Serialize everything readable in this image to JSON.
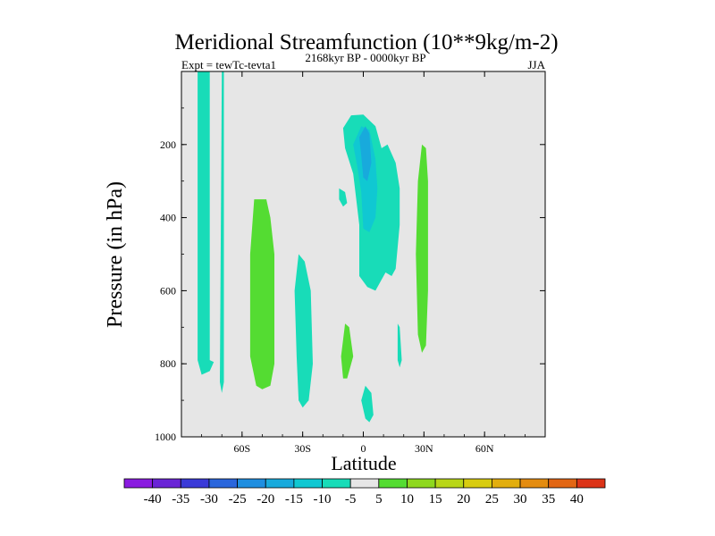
{
  "chart_data": {
    "type": "filled-contour",
    "title": "Meridional Streamfunction (10**9kg/m-2)",
    "subtitle_left": "Expt = tewTc-tevta1",
    "subtitle_center": "2168kyr BP - 0000kyr BP",
    "subtitle_right": "JJA",
    "xlabel": "Latitude",
    "ylabel": "Pressure (in hPa)",
    "xlim": [
      -90,
      90
    ],
    "ylim": [
      0,
      1000
    ],
    "y_inverted": true,
    "x_ticks": [
      {
        "value": -60,
        "label": "60S"
      },
      {
        "value": -30,
        "label": "30S"
      },
      {
        "value": 0,
        "label": "0"
      },
      {
        "value": 30,
        "label": "30N"
      },
      {
        "value": 60,
        "label": "60N"
      }
    ],
    "y_ticks": [
      {
        "value": 200,
        "label": "200"
      },
      {
        "value": 400,
        "label": "400"
      },
      {
        "value": 600,
        "label": "600"
      },
      {
        "value": 800,
        "label": "800"
      },
      {
        "value": 1000,
        "label": "1000"
      }
    ],
    "background_color": "#e6e6e6",
    "colorbar": {
      "levels": [
        -40,
        -35,
        -30,
        -25,
        -20,
        -15,
        -10,
        -5,
        5,
        10,
        15,
        20,
        25,
        30,
        35,
        40
      ],
      "labels": [
        "-40",
        "-35",
        "-30",
        "-25",
        "-20",
        "-15",
        "-10",
        "-5",
        "5",
        "10",
        "15",
        "20",
        "25",
        "30",
        "35",
        "40"
      ],
      "colors": [
        "#8a1be0",
        "#6a24d6",
        "#3a3ad8",
        "#2a66dc",
        "#1e8ee0",
        "#18aadc",
        "#10c8d2",
        "#18dcb8",
        "#e6e6e6",
        "#54dc32",
        "#8ed81e",
        "#b8d618",
        "#d8cc10",
        "#e2ae0e",
        "#e48c10",
        "#e26614",
        "#dc3418"
      ]
    },
    "regions": [
      {
        "level": "-10 to -5",
        "color": "#18dcb8",
        "points": [
          [
            -82,
            0
          ],
          [
            -76,
            0
          ],
          [
            -76,
            790
          ],
          [
            -74,
            795
          ],
          [
            -76,
            820
          ],
          [
            -80,
            830
          ],
          [
            -82,
            790
          ]
        ]
      },
      {
        "level": "-10 to -5",
        "color": "#18dcb8",
        "points": [
          [
            -70,
            0
          ],
          [
            -69,
            0
          ],
          [
            -69,
            850
          ],
          [
            -70,
            880
          ],
          [
            -71,
            850
          ]
        ]
      },
      {
        "level": "5 to 10",
        "color": "#54dc32",
        "points": [
          [
            -54,
            350
          ],
          [
            -48,
            350
          ],
          [
            -46,
            400
          ],
          [
            -44,
            500
          ],
          [
            -44,
            800
          ],
          [
            -46,
            860
          ],
          [
            -50,
            870
          ],
          [
            -53,
            860
          ],
          [
            -56,
            780
          ],
          [
            -56,
            500
          ]
        ]
      },
      {
        "level": "-10 to -5",
        "color": "#18dcb8",
        "points": [
          [
            -32,
            500
          ],
          [
            -29,
            520
          ],
          [
            -26,
            600
          ],
          [
            -25,
            800
          ],
          [
            -27,
            900
          ],
          [
            -30,
            920
          ],
          [
            -32,
            900
          ],
          [
            -33,
            780
          ],
          [
            -34,
            600
          ]
        ]
      },
      {
        "level": "5 to 10",
        "color": "#54dc32",
        "points": [
          [
            -9,
            690
          ],
          [
            -7,
            700
          ],
          [
            -5,
            780
          ],
          [
            -8,
            840
          ],
          [
            -10,
            840
          ],
          [
            -11,
            780
          ]
        ]
      },
      {
        "level": "-10 to -5",
        "color": "#18dcb8",
        "points": [
          [
            -12,
            320
          ],
          [
            -9,
            330
          ],
          [
            -8,
            360
          ],
          [
            -10,
            370
          ],
          [
            -12,
            350
          ]
        ]
      },
      {
        "level": "-10 to -5",
        "color": "#18dcb8",
        "points": [
          [
            1,
            860
          ],
          [
            4,
            880
          ],
          [
            5,
            940
          ],
          [
            3,
            960
          ],
          [
            1,
            950
          ],
          [
            -1,
            900
          ]
        ]
      },
      {
        "level": "-10 to -5",
        "color": "#18dcb8",
        "points": [
          [
            -10,
            155
          ],
          [
            -6,
            120
          ],
          [
            0,
            118
          ],
          [
            6,
            150
          ],
          [
            9,
            210
          ],
          [
            12,
            200
          ],
          [
            16,
            250
          ],
          [
            18,
            320
          ],
          [
            18,
            420
          ],
          [
            16,
            540
          ],
          [
            14,
            560
          ],
          [
            11,
            550
          ],
          [
            8,
            580
          ],
          [
            6,
            600
          ],
          [
            2,
            590
          ],
          [
            -2,
            560
          ],
          [
            -2,
            420
          ],
          [
            -5,
            280
          ],
          [
            -9,
            210
          ]
        ]
      },
      {
        "level": "-15 to -10",
        "color": "#10c8d2",
        "points": [
          [
            -5,
            200
          ],
          [
            -1,
            150
          ],
          [
            3,
            160
          ],
          [
            6,
            240
          ],
          [
            7,
            320
          ],
          [
            6,
            400
          ],
          [
            3,
            440
          ],
          [
            0,
            430
          ],
          [
            -1,
            330
          ],
          [
            -3,
            260
          ]
        ]
      },
      {
        "level": "-20 to -15",
        "color": "#18aadc",
        "points": [
          [
            -2,
            180
          ],
          [
            1,
            150
          ],
          [
            3,
            170
          ],
          [
            4,
            250
          ],
          [
            2,
            300
          ],
          [
            0,
            290
          ],
          [
            -1,
            230
          ]
        ]
      },
      {
        "level": "-10 to -5",
        "color": "#18dcb8",
        "points": [
          [
            17,
            690
          ],
          [
            18,
            700
          ],
          [
            19,
            790
          ],
          [
            18,
            810
          ],
          [
            17,
            790
          ]
        ]
      },
      {
        "level": "5 to 10",
        "color": "#54dc32",
        "points": [
          [
            29,
            200
          ],
          [
            31,
            210
          ],
          [
            32,
            300
          ],
          [
            32,
            600
          ],
          [
            31,
            750
          ],
          [
            29,
            770
          ],
          [
            27,
            720
          ],
          [
            26,
            500
          ],
          [
            27,
            300
          ]
        ]
      }
    ]
  }
}
